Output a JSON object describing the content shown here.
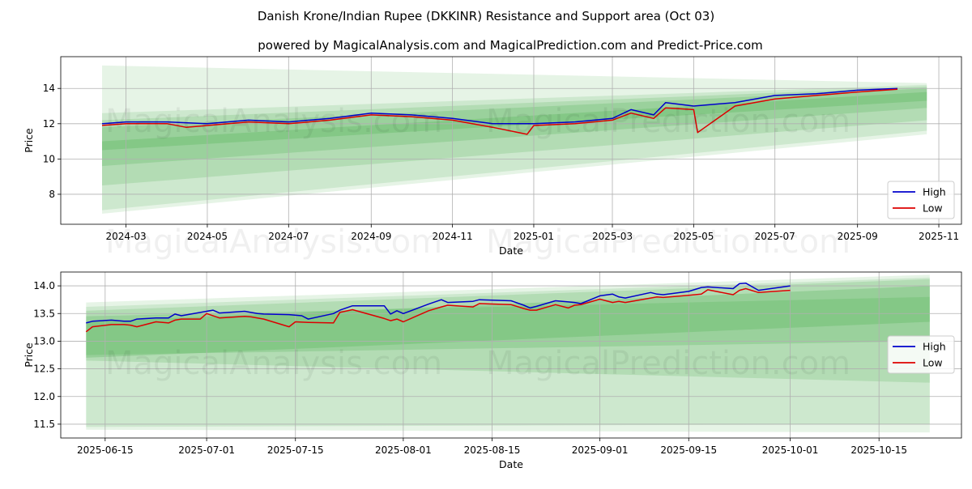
{
  "title": "Danish Krone/Indian Rupee (DKKINR) Resistance and Support area (Oct 03)",
  "subtitle": "powered by MagicalAnalysis.com and MagicalPrediction.com and Predict-Price.com",
  "watermark_left": "MagicalAnalysis.com",
  "watermark_right": "MagicalPrediction.com",
  "colors": {
    "high": "#0000cc",
    "low": "#dd0000",
    "band": "#4caf50",
    "grid": "#b0b0b0"
  },
  "chart_data": [
    {
      "type": "line",
      "name": "full-range",
      "xlabel": "Date",
      "ylabel": "Price",
      "grid": true,
      "legend": "lower-right",
      "xlim": [
        "2024-01-12",
        "2025-11-18"
      ],
      "ylim": [
        6.3,
        15.8
      ],
      "x_ticks": [
        "2024-03",
        "2024-05",
        "2024-07",
        "2024-09",
        "2024-11",
        "2025-01",
        "2025-03",
        "2025-05",
        "2025-07",
        "2025-09",
        "2025-11"
      ],
      "y_ticks": [
        8,
        10,
        12,
        14
      ],
      "series": [
        {
          "name": "High",
          "x": [
            "2024-02-12",
            "2024-03-01",
            "2024-04-01",
            "2024-05-01",
            "2024-06-01",
            "2024-07-01",
            "2024-08-01",
            "2024-09-01",
            "2024-10-01",
            "2024-11-01",
            "2024-12-01",
            "2025-01-01",
            "2025-02-01",
            "2025-03-01",
            "2025-03-15",
            "2025-04-01",
            "2025-04-10",
            "2025-05-01",
            "2025-06-01",
            "2025-07-01",
            "2025-08-01",
            "2025-09-01",
            "2025-10-01"
          ],
          "values": [
            12.0,
            12.1,
            12.1,
            12.0,
            12.2,
            12.1,
            12.3,
            12.6,
            12.5,
            12.3,
            12.0,
            12.0,
            12.1,
            12.3,
            12.8,
            12.5,
            13.2,
            13.0,
            13.2,
            13.6,
            13.7,
            13.9,
            14.0
          ]
        },
        {
          "name": "Low",
          "x": [
            "2024-02-12",
            "2024-03-01",
            "2024-04-01",
            "2024-04-15",
            "2024-05-01",
            "2024-06-01",
            "2024-07-01",
            "2024-08-01",
            "2024-09-01",
            "2024-10-01",
            "2024-11-01",
            "2024-12-01",
            "2024-12-27",
            "2025-01-01",
            "2025-02-01",
            "2025-03-01",
            "2025-03-15",
            "2025-04-01",
            "2025-04-10",
            "2025-05-01",
            "2025-05-04",
            "2025-06-01",
            "2025-07-01",
            "2025-08-01",
            "2025-09-01",
            "2025-10-01"
          ],
          "values": [
            11.9,
            12.0,
            12.0,
            11.8,
            11.9,
            12.1,
            12.0,
            12.2,
            12.5,
            12.4,
            12.2,
            11.8,
            11.4,
            11.9,
            12.0,
            12.2,
            12.6,
            12.3,
            12.9,
            12.8,
            11.5,
            13.0,
            13.4,
            13.6,
            13.8,
            13.95
          ]
        }
      ],
      "bands": [
        {
          "x": [
            "2024-02-12",
            "2025-10-23"
          ],
          "upper": [
            15.3,
            14.3
          ],
          "lower": [
            6.9,
            11.4
          ]
        },
        {
          "x": [
            "2024-02-12",
            "2025-10-23"
          ],
          "upper": [
            12.6,
            14.2
          ],
          "lower": [
            7.1,
            11.6
          ]
        },
        {
          "x": [
            "2024-02-12",
            "2025-10-23"
          ],
          "upper": [
            12.2,
            14.1
          ],
          "lower": [
            8.5,
            12.2
          ]
        },
        {
          "x": [
            "2024-02-12",
            "2025-10-23"
          ],
          "upper": [
            11.8,
            14.0
          ],
          "lower": [
            9.6,
            12.9
          ]
        },
        {
          "x": [
            "2024-02-12",
            "2025-10-23"
          ],
          "upper": [
            11.0,
            13.8
          ],
          "lower": [
            10.5,
            13.3
          ]
        }
      ]
    },
    {
      "type": "line",
      "name": "recent",
      "xlabel": "Date",
      "ylabel": "Price",
      "grid": true,
      "legend": "right",
      "xlim": [
        "2025-06-08",
        "2025-10-28"
      ],
      "ylim": [
        11.25,
        14.25
      ],
      "x_ticks": [
        "2025-06-15",
        "2025-07-01",
        "2025-07-15",
        "2025-08-01",
        "2025-08-15",
        "2025-09-01",
        "2025-09-15",
        "2025-10-01",
        "2025-10-15"
      ],
      "y_ticks": [
        11.5,
        12.0,
        12.5,
        13.0,
        13.5,
        14.0
      ],
      "series": [
        {
          "name": "High",
          "x": [
            "2025-06-12",
            "2025-06-13",
            "2025-06-16",
            "2025-06-18",
            "2025-06-19",
            "2025-06-20",
            "2025-06-23",
            "2025-06-25",
            "2025-06-26",
            "2025-06-27",
            "2025-06-30",
            "2025-07-02",
            "2025-07-03",
            "2025-07-07",
            "2025-07-09",
            "2025-07-10",
            "2025-07-14",
            "2025-07-16",
            "2025-07-17",
            "2025-07-21",
            "2025-07-22",
            "2025-07-24",
            "2025-07-29",
            "2025-07-30",
            "2025-07-31",
            "2025-08-01",
            "2025-08-05",
            "2025-08-07",
            "2025-08-08",
            "2025-08-12",
            "2025-08-13",
            "2025-08-18",
            "2025-08-20",
            "2025-08-21",
            "2025-08-22",
            "2025-08-25",
            "2025-08-27",
            "2025-08-28",
            "2025-08-29",
            "2025-09-01",
            "2025-09-03",
            "2025-09-04",
            "2025-09-05",
            "2025-09-09",
            "2025-09-10",
            "2025-09-11",
            "2025-09-15",
            "2025-09-17",
            "2025-09-18",
            "2025-09-22",
            "2025-09-23",
            "2025-09-24",
            "2025-09-26",
            "2025-10-01"
          ],
          "values": [
            13.33,
            13.36,
            13.38,
            13.36,
            13.36,
            13.4,
            13.42,
            13.42,
            13.49,
            13.46,
            13.52,
            13.56,
            13.51,
            13.54,
            13.5,
            13.49,
            13.48,
            13.46,
            13.4,
            13.5,
            13.56,
            13.64,
            13.64,
            13.49,
            13.55,
            13.5,
            13.67,
            13.75,
            13.7,
            13.72,
            13.75,
            13.73,
            13.65,
            13.6,
            13.63,
            13.73,
            13.71,
            13.7,
            13.68,
            13.82,
            13.85,
            13.8,
            13.78,
            13.88,
            13.85,
            13.84,
            13.9,
            13.97,
            13.98,
            13.95,
            14.04,
            14.05,
            13.92,
            14.0
          ]
        },
        {
          "name": "Low",
          "x": [
            "2025-06-12",
            "2025-06-13",
            "2025-06-16",
            "2025-06-18",
            "2025-06-19",
            "2025-06-20",
            "2025-06-23",
            "2025-06-25",
            "2025-06-26",
            "2025-06-27",
            "2025-06-30",
            "2025-07-01",
            "2025-07-03",
            "2025-07-07",
            "2025-07-08",
            "2025-07-10",
            "2025-07-14",
            "2025-07-15",
            "2025-07-17",
            "2025-07-21",
            "2025-07-22",
            "2025-07-24",
            "2025-07-29",
            "2025-07-30",
            "2025-07-31",
            "2025-08-01",
            "2025-08-05",
            "2025-08-07",
            "2025-08-08",
            "2025-08-12",
            "2025-08-13",
            "2025-08-18",
            "2025-08-20",
            "2025-08-21",
            "2025-08-22",
            "2025-08-25",
            "2025-08-27",
            "2025-08-28",
            "2025-08-29",
            "2025-09-01",
            "2025-09-03",
            "2025-09-04",
            "2025-09-05",
            "2025-09-09",
            "2025-09-10",
            "2025-09-11",
            "2025-09-15",
            "2025-09-17",
            "2025-09-18",
            "2025-09-22",
            "2025-09-23",
            "2025-09-24",
            "2025-09-26",
            "2025-10-01"
          ],
          "values": [
            13.17,
            13.26,
            13.3,
            13.3,
            13.29,
            13.26,
            13.35,
            13.33,
            13.38,
            13.4,
            13.4,
            13.5,
            13.42,
            13.45,
            13.44,
            13.4,
            13.26,
            13.35,
            13.34,
            13.33,
            13.52,
            13.57,
            13.41,
            13.37,
            13.4,
            13.35,
            13.55,
            13.62,
            13.65,
            13.62,
            13.68,
            13.66,
            13.59,
            13.56,
            13.56,
            13.66,
            13.6,
            13.65,
            13.66,
            13.76,
            13.7,
            13.72,
            13.7,
            13.78,
            13.8,
            13.79,
            13.83,
            13.85,
            13.93,
            13.84,
            13.92,
            13.95,
            13.88,
            13.92
          ]
        }
      ],
      "bands": [
        {
          "x": [
            "2025-06-12",
            "2025-10-23"
          ],
          "upper": [
            13.7,
            14.2
          ],
          "lower": [
            11.4,
            11.35
          ]
        },
        {
          "x": [
            "2025-06-12",
            "2025-10-23"
          ],
          "upper": [
            13.62,
            14.15
          ],
          "lower": [
            11.45,
            11.5
          ]
        },
        {
          "x": [
            "2025-06-12",
            "2025-10-23"
          ],
          "upper": [
            13.55,
            14.12
          ],
          "lower": [
            12.65,
            12.25
          ]
        },
        {
          "x": [
            "2025-06-12",
            "2025-10-23"
          ],
          "upper": [
            13.45,
            13.8
          ],
          "lower": [
            12.75,
            13.0
          ]
        },
        {
          "x": [
            "2025-06-12",
            "2025-10-23"
          ],
          "upper": [
            13.35,
            14.0
          ],
          "lower": [
            12.7,
            13.35
          ]
        }
      ]
    }
  ]
}
